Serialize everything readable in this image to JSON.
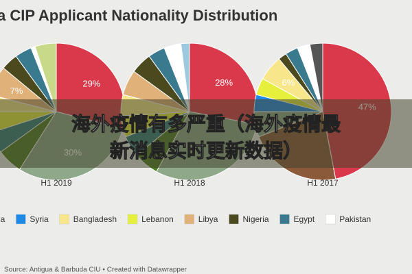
{
  "chart_data": {
    "type": "pie",
    "title": "a CIP Applicant Nationality Distribution",
    "pies": [
      {
        "label": "H1 2019",
        "values": [
          29,
          30,
          6,
          5,
          5,
          4,
          7,
          4,
          4,
          1,
          5
        ],
        "colors": [
          "#d9394a",
          "#8fa88a",
          "#4f7a24",
          "#2f7d7a",
          "#e6f03c",
          "#f8e68a",
          "#e0b27a",
          "#4a4a1e",
          "#3a7a8f",
          "#ffffff",
          "#c9d98a"
        ],
        "value_labels": [
          "29%",
          "30%",
          null,
          null,
          null,
          null,
          "7%",
          null,
          null,
          null,
          null
        ]
      },
      {
        "label": "H1 2018",
        "values": [
          28,
          30,
          6,
          5,
          5,
          5,
          6,
          5,
          4,
          4,
          2
        ],
        "colors": [
          "#d9394a",
          "#8fa88a",
          "#4f7a24",
          "#2f7d7a",
          "#e6f03c",
          "#f8e68a",
          "#e0b27a",
          "#4a4a1e",
          "#3a7a8f",
          "#ffffff",
          "#9ecae1"
        ],
        "value_labels": [
          "28%",
          null,
          null,
          null,
          null,
          null,
          null,
          null,
          null,
          null,
          null
        ]
      },
      {
        "label": "H1 2017",
        "values": [
          47,
          22,
          6,
          4,
          4,
          6,
          2,
          3,
          3,
          3
        ],
        "colors": [
          "#d9394a",
          "#8b5a3a",
          "#8fa88a",
          "#1e88e5",
          "#e6f03c",
          "#f8e68a",
          "#4a4a1e",
          "#3a7a8f",
          "#ffffff",
          "#555555"
        ],
        "value_labels": [
          "47%",
          null,
          null,
          null,
          null,
          "6%",
          null,
          null,
          null,
          null
        ]
      }
    ],
    "legend": [
      {
        "name": "ia",
        "color": "#c9d98a"
      },
      {
        "name": "Syria",
        "color": "#1e88e5"
      },
      {
        "name": "Bangladesh",
        "color": "#f8e68a"
      },
      {
        "name": "Lebanon",
        "color": "#e6f03c"
      },
      {
        "name": "Libya",
        "color": "#e0b27a"
      },
      {
        "name": "Nigeria",
        "color": "#4a4a1e"
      },
      {
        "name": "Egypt",
        "color": "#3a7a8f"
      },
      {
        "name": "Pakistan",
        "color": "#ffffff"
      }
    ],
    "source": "Source: Antigua & Barbuda CIU • Created with Datawrapper"
  },
  "overlay": [
    "海外疫情有多严重（海外疫情最",
    "新消息实时更新数据）"
  ]
}
